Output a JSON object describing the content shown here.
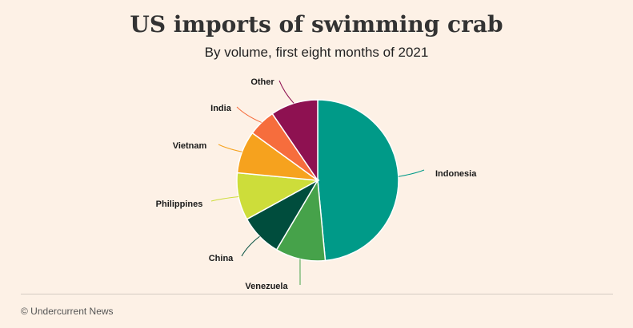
{
  "header": {
    "title": "US imports of swimming crab",
    "subtitle": "By volume, first eight months of 2021"
  },
  "footer": {
    "credit": "© Undercurrent News"
  },
  "chart_data": {
    "type": "pie",
    "title": "US imports of swimming crab",
    "subtitle": "By volume, first eight months of 2021",
    "slices": [
      {
        "label": "Indonesia",
        "value": 48.5,
        "color": "#009a88"
      },
      {
        "label": "Venezuela",
        "value": 10.0,
        "color": "#46a24a"
      },
      {
        "label": "China",
        "value": 8.5,
        "color": "#004d3d"
      },
      {
        "label": "Philippines",
        "value": 9.5,
        "color": "#cddd3a"
      },
      {
        "label": "Vietnam",
        "value": 8.5,
        "color": "#f6a21e"
      },
      {
        "label": "India",
        "value": 5.5,
        "color": "#f66d3d"
      },
      {
        "label": "Other",
        "value": 9.5,
        "color": "#8e1151"
      }
    ]
  }
}
